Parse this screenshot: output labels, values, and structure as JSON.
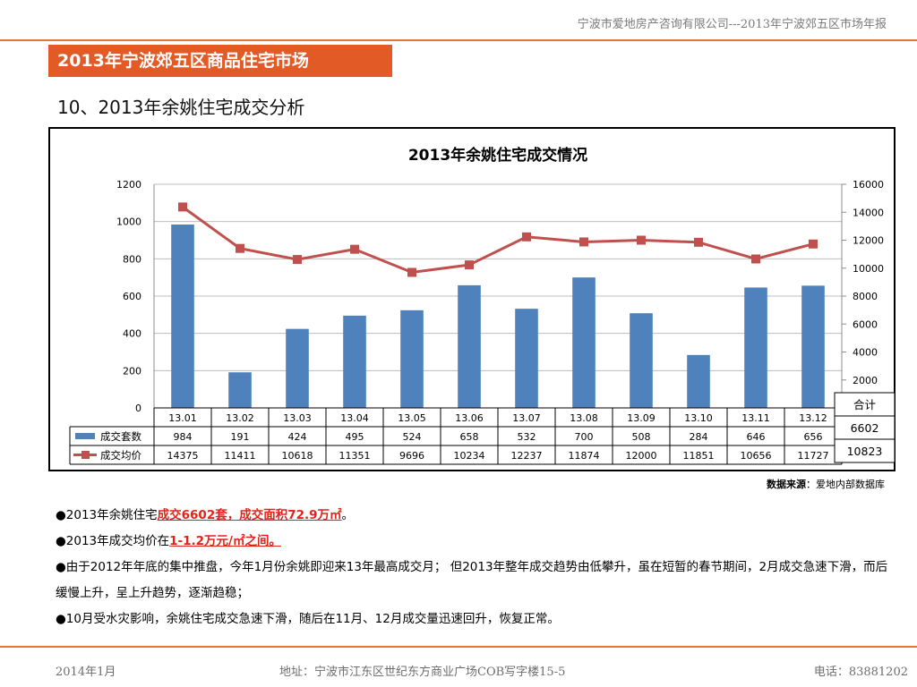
{
  "header": {
    "note": "宁波市爱地房产咨询有限公司---2013年宁波郊五区市场年报",
    "banner": "2013年宁波郊五区商品住宅市场"
  },
  "section_title": "10、2013年余姚住宅成交分析",
  "chart_data": {
    "type": "bar+line",
    "title": "2013年余姚住宅成交情况",
    "categories": [
      "13.01",
      "13.02",
      "13.03",
      "13.04",
      "13.05",
      "13.06",
      "13.07",
      "13.08",
      "13.09",
      "13.10",
      "13.11",
      "13.12"
    ],
    "series": [
      {
        "name": "成交套数",
        "type": "bar",
        "axis": "left",
        "color": "#4f81bd",
        "values": [
          984,
          191,
          424,
          495,
          524,
          658,
          532,
          700,
          508,
          284,
          646,
          656
        ]
      },
      {
        "name": "成交均价",
        "type": "line",
        "axis": "right",
        "color": "#c0504d",
        "values": [
          14375,
          11411,
          10618,
          11351,
          9696,
          10234,
          12237,
          11874,
          12000,
          11851,
          10656,
          11727
        ]
      }
    ],
    "left_axis": {
      "min": 0,
      "max": 1200,
      "step": 200,
      "ticks": [
        "0",
        "200",
        "400",
        "600",
        "800",
        "1000",
        "1200"
      ]
    },
    "right_axis": {
      "min": 0,
      "max": 16000,
      "step": 2000,
      "ticks": [
        "2000",
        "4000",
        "6000",
        "8000",
        "10000",
        "12000",
        "14000",
        "16000"
      ]
    },
    "grid": "horizontal",
    "legend": "data-table",
    "table": {
      "labels": [
        "成交套数",
        "成交均价"
      ],
      "rows": [
        [
          "984",
          "191",
          "424",
          "495",
          "524",
          "658",
          "532",
          "700",
          "508",
          "284",
          "646",
          "656"
        ],
        [
          "14375",
          "11411",
          "10618",
          "11351",
          "9696",
          "10234",
          "12237",
          "11874",
          "12000",
          "11851",
          "10656",
          "11727"
        ]
      ]
    },
    "totals": {
      "header": "合计",
      "count": "6602",
      "price": "10823"
    }
  },
  "source": {
    "label": "数据来源",
    "text": "：爱地内部数据库"
  },
  "bullets": [
    {
      "pre": "●2013年余姚住宅",
      "hl": "成交6602套，成交面积72.9万㎡",
      "post": "。"
    },
    {
      "pre": "●2013年成交均价在",
      "hl": "1-1.2万元/㎡之间。",
      "post": ""
    },
    {
      "pre": "●由于2012年年底的集中推盘，今年1月份余姚即迎来13年最高成交月； 但2013年整年成交趋势由低攀升，虽在短暂的春节期间，2月成交急速下滑，而后缓慢上升，呈上升趋势，逐渐趋稳；",
      "hl": "",
      "post": ""
    },
    {
      "pre": "●10月受水灾影响，余姚住宅成交急速下滑，随后在11月、12月成交量迅速回升，恢复正常。",
      "hl": "",
      "post": ""
    }
  ],
  "footer": {
    "date": "2014年1月",
    "address": "地址：宁波市江东区世纪东方商业广场COB写字楼15-5",
    "phone": "电话：83881202"
  }
}
